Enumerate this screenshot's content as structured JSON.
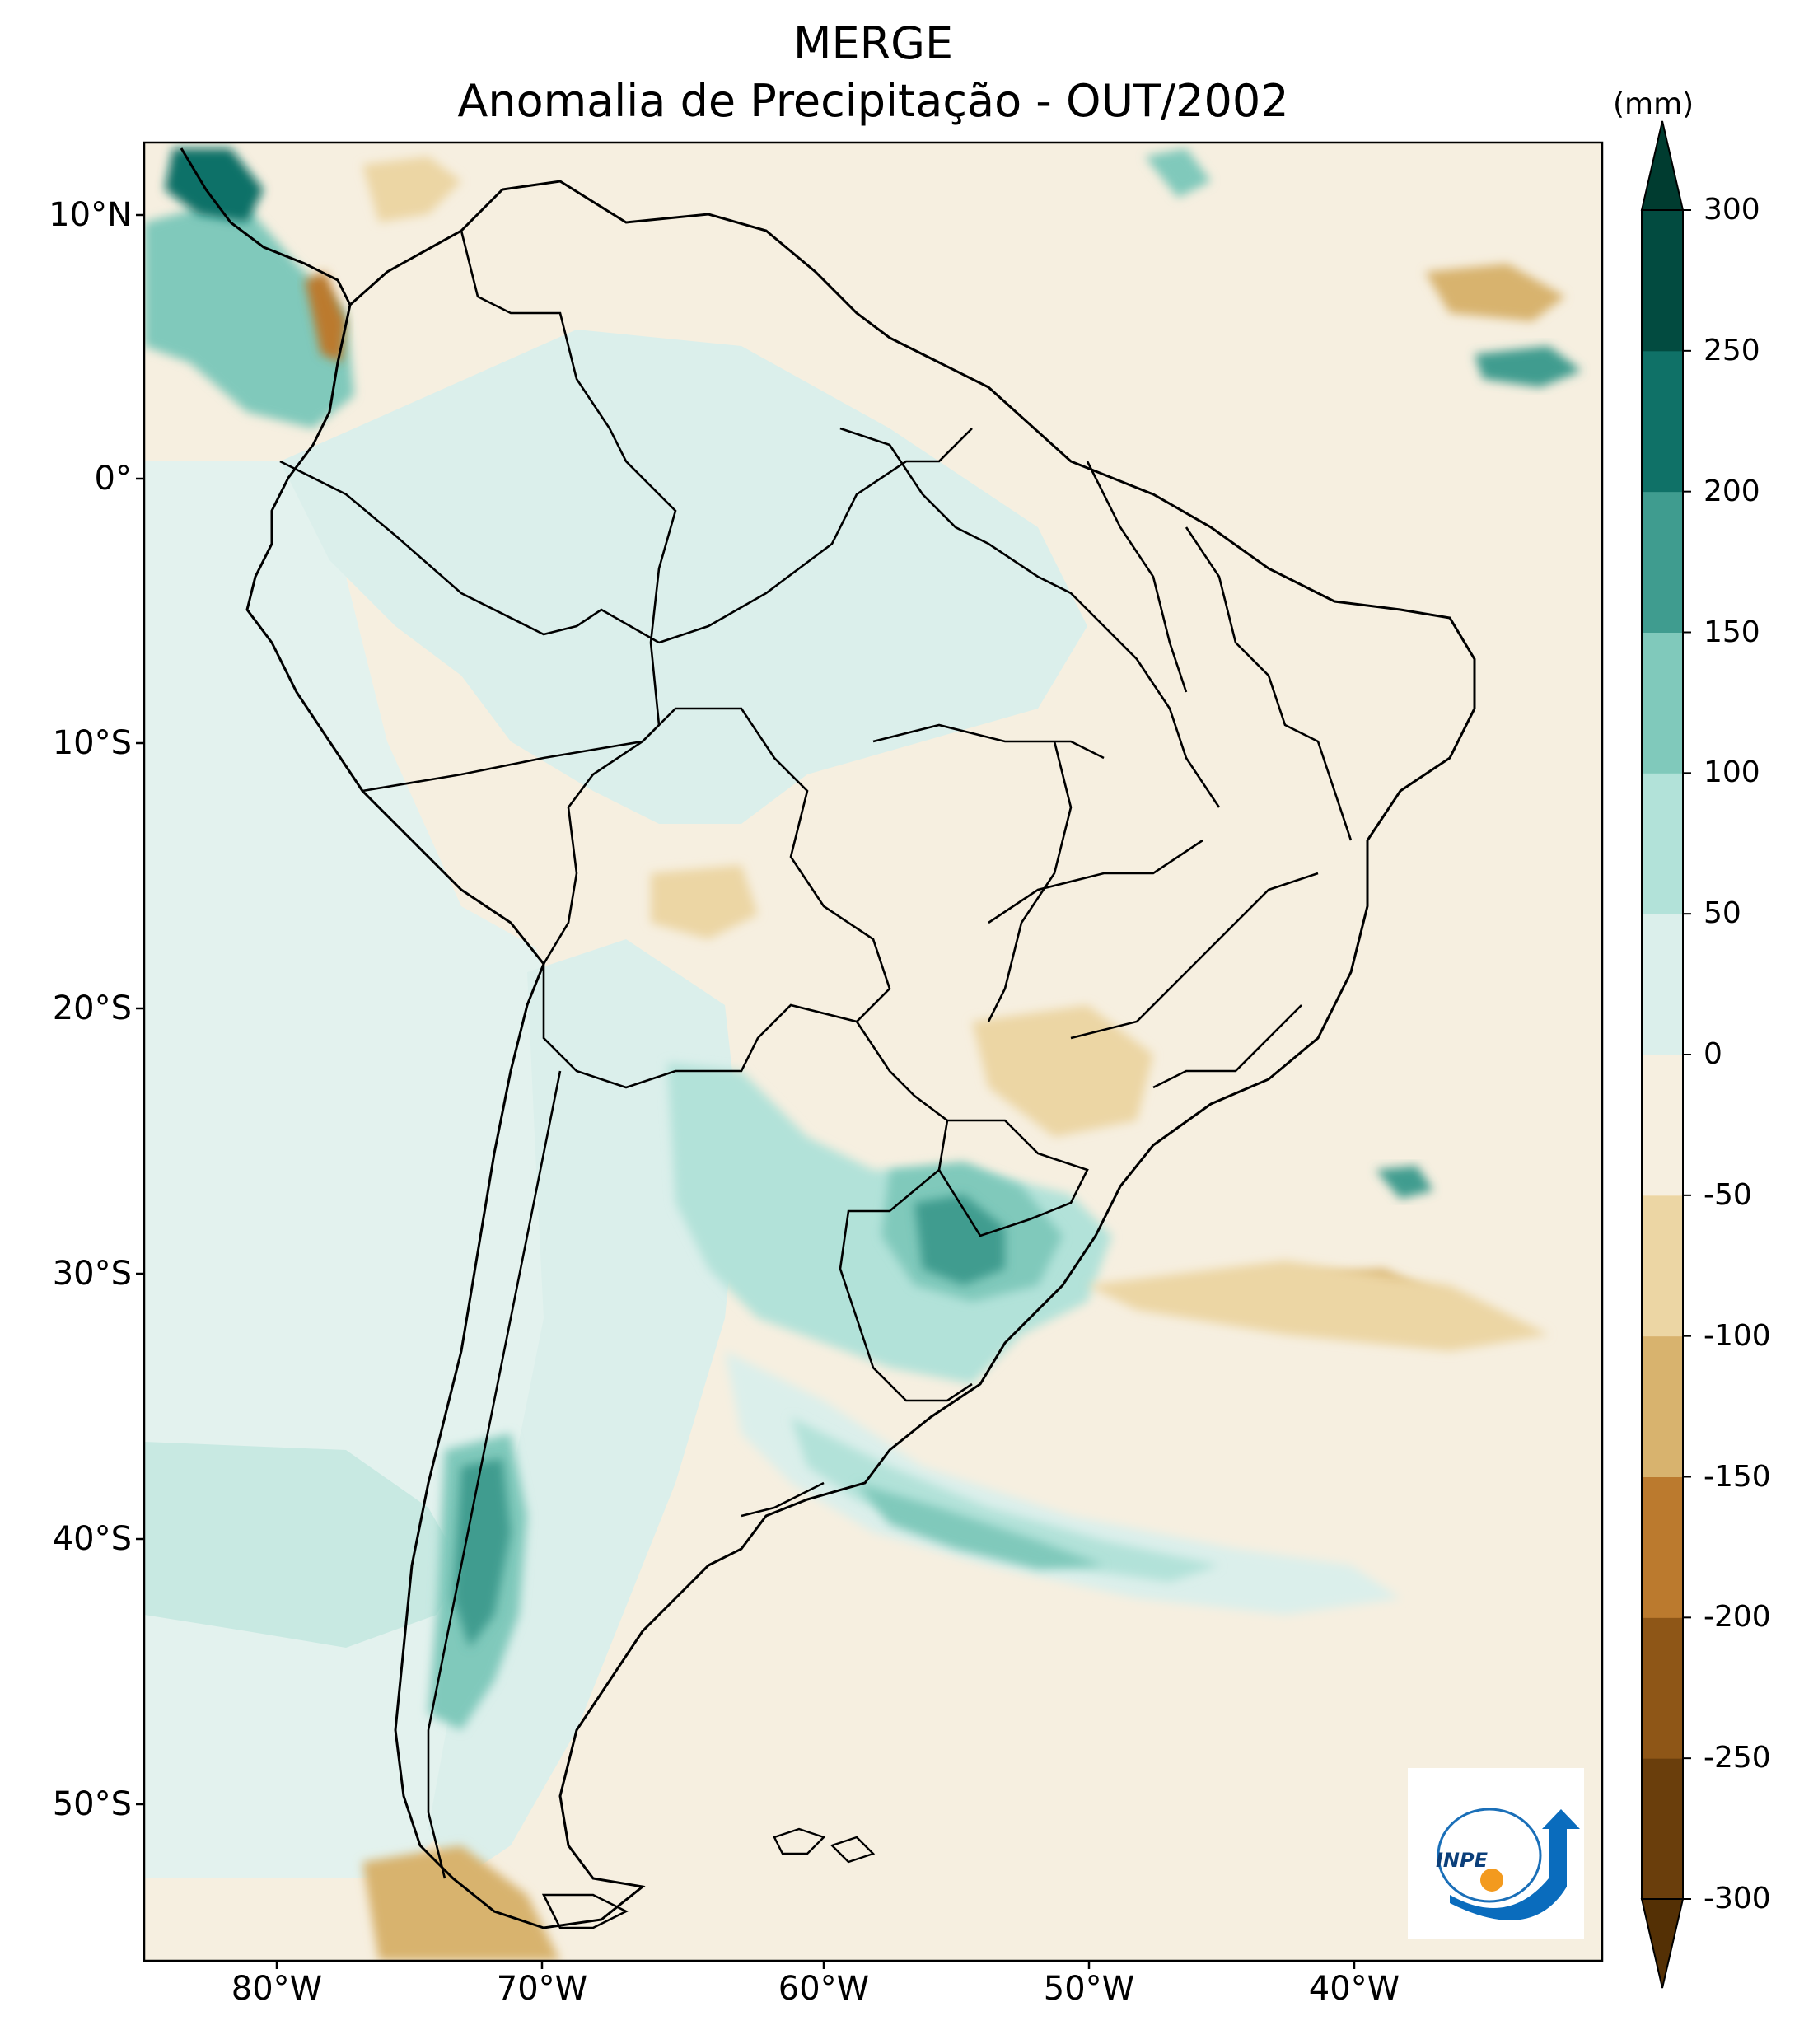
{
  "title": {
    "line1": "MERGE",
    "line2": "Anomalia de Precipitação - OUT/2002"
  },
  "colorbar": {
    "unit": "(mm)",
    "levels": [
      -300,
      -250,
      -200,
      -150,
      -100,
      -50,
      0,
      50,
      100,
      150,
      200,
      250,
      300
    ],
    "labels": [
      "300",
      "250",
      "200",
      "150",
      "100",
      "50",
      "0",
      "-50",
      "-100",
      "-150",
      "-200",
      "-250",
      "-300"
    ],
    "colors_low_to_high": [
      "#6a3e0c",
      "#8e5617",
      "#bb7a2e",
      "#d8b36e",
      "#ecd6a4",
      "#f6efe0",
      "#dbefeb",
      "#b2e2d9",
      "#80c9bb",
      "#3f9c8f",
      "#0f7167",
      "#024b40"
    ],
    "extend_low_color": "#543005",
    "extend_high_color": "#003c30"
  },
  "axes": {
    "lat_ticks": [
      "10°N",
      "0°",
      "10°S",
      "20°S",
      "30°S",
      "40°S",
      "50°S"
    ],
    "lon_ticks": [
      "80°W",
      "70°W",
      "60°W",
      "50°W",
      "40°W"
    ],
    "lon_range": [
      -85,
      -30
    ],
    "lat_range": [
      -56,
      13
    ]
  },
  "map": {
    "background_color": "#f6efe0",
    "ocean_color": "#e6f3ef"
  },
  "logo": {
    "text": "INPE"
  }
}
